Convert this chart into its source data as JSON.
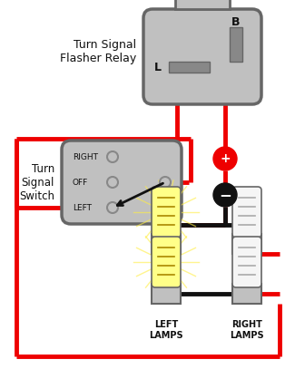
{
  "bg_color": "#ffffff",
  "red": "#ee0000",
  "black": "#111111",
  "light_gray": "#c0c0c0",
  "dark_gray": "#666666",
  "med_gray": "#888888",
  "yellow": "#ffff88",
  "relay_label": "Turn Signal\nFlasher Relay",
  "switch_label": "Turn\nSignal\nSwitch",
  "left_lamps_label": "LEFT\nLAMPS",
  "right_lamps_label": "RIGHT\nLAMPS"
}
